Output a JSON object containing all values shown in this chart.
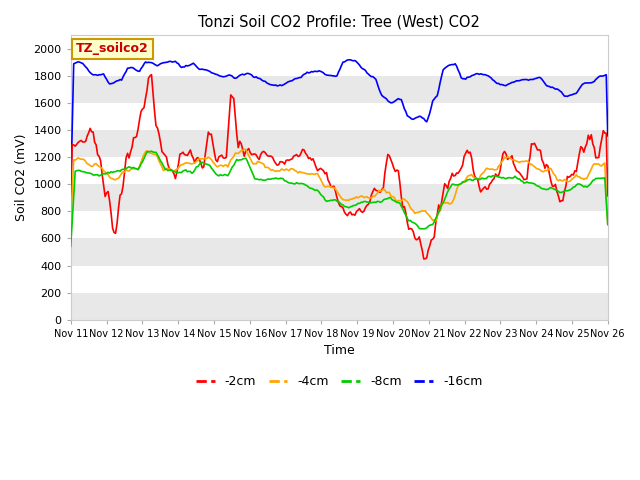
{
  "title": "Tonzi Soil CO2 Profile: Tree (West) CO2",
  "xlabel": "Time",
  "ylabel": "Soil CO2 (mV)",
  "ylim": [
    0,
    2100
  ],
  "yticks": [
    0,
    200,
    400,
    600,
    800,
    1000,
    1200,
    1400,
    1600,
    1800,
    2000
  ],
  "xtick_labels": [
    "Nov 11",
    "Nov 12",
    "Nov 13",
    "Nov 14",
    "Nov 15",
    "Nov 16",
    "Nov 17",
    "Nov 18",
    "Nov 19",
    "Nov 20",
    "Nov 21",
    "Nov 22",
    "Nov 23",
    "Nov 24",
    "Nov 25",
    "Nov 26"
  ],
  "bg_color": "#ffffff",
  "plot_bg": "#ffffff",
  "band_color1": "#e8e8e8",
  "band_color2": "#ffffff",
  "colors": {
    "2cm": "#ff0000",
    "4cm": "#ffa500",
    "8cm": "#00cc00",
    "16cm": "#0000ff"
  },
  "legend_labels": [
    "-2cm",
    "-4cm",
    "-8cm",
    "-16cm"
  ],
  "annotation_text": "TZ_soilco2",
  "annotation_color": "#cc0000",
  "annotation_bg": "#ffffcc",
  "annotation_border": "#cc9900",
  "n_points": 360,
  "seed": 42
}
